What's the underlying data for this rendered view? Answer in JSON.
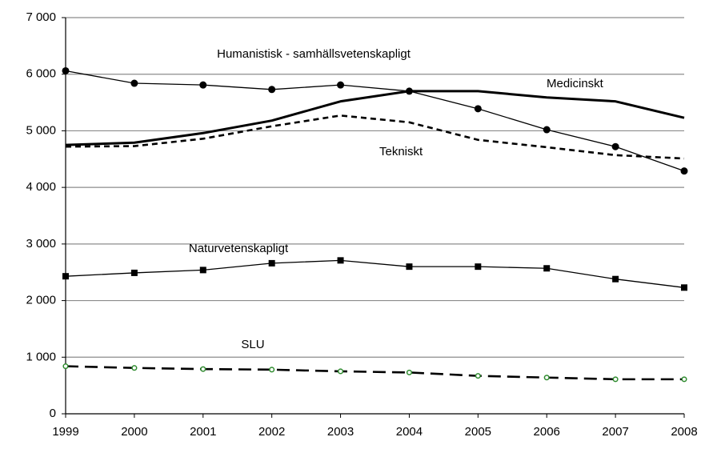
{
  "chart_data": {
    "type": "line",
    "categories": [
      "1999",
      "2000",
      "2001",
      "2002",
      "2003",
      "2004",
      "2005",
      "2006",
      "2007",
      "2008"
    ],
    "ylim": [
      0,
      7000
    ],
    "yticks": [
      0,
      {
        "value": 1000,
        "label": "1 000"
      },
      {
        "value": 2000,
        "label": "2 000"
      },
      {
        "value": 3000,
        "label": "3 000"
      },
      {
        "value": 4000,
        "label": "4 000"
      },
      {
        "value": 5000,
        "label": "5 000"
      },
      {
        "value": 6000,
        "label": "6 000"
      },
      {
        "value": 7000,
        "label": "7 000"
      }
    ],
    "grid": true,
    "series": [
      {
        "name": "Humanistisk - samhällsvetenskapligt",
        "color": "#000000",
        "width": 1.3,
        "dash": "none",
        "marker": "circle",
        "marker_color": "#000000",
        "values": [
          6060,
          5840,
          5810,
          5730,
          5810,
          5700,
          5390,
          5020,
          4720,
          4290
        ]
      },
      {
        "name": "Medicinskt",
        "color": "#000000",
        "width": 3,
        "dash": "none",
        "marker": "none",
        "values": [
          4750,
          4790,
          4960,
          5180,
          5520,
          5700,
          5700,
          5590,
          5520,
          5230
        ]
      },
      {
        "name": "Tekniskt",
        "color": "#000000",
        "width": 2.6,
        "dash": "7,5",
        "marker": "none",
        "values": [
          4720,
          4730,
          4860,
          5080,
          5270,
          5150,
          4840,
          4710,
          4570,
          4510
        ]
      },
      {
        "name": "Naturvetenskapligt",
        "color": "#000000",
        "width": 1.3,
        "dash": "none",
        "marker": "square",
        "marker_color": "#000000",
        "values": [
          2430,
          2490,
          2540,
          2660,
          2710,
          2600,
          2600,
          2570,
          2380,
          2230
        ]
      },
      {
        "name": "SLU",
        "color": "#000000",
        "width": 2.6,
        "dash": "16,8",
        "marker": "open-circle",
        "marker_color": "#2e8b2e",
        "values": [
          840,
          810,
          790,
          780,
          750,
          730,
          670,
          640,
          610,
          610
        ]
      }
    ]
  }
}
